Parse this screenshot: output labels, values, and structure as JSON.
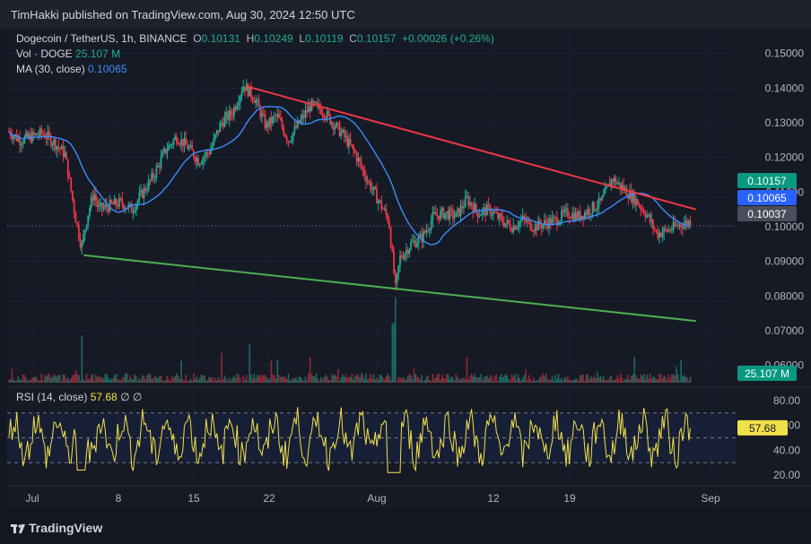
{
  "header": {
    "published": "TimHakki published on TradingView.com, Aug 30, 2024 12:50 UTC"
  },
  "legend": {
    "symbol": "Dogecoin / TetherUS, 1h, BINANCE",
    "o_label": "O",
    "o": "0.10131",
    "h_label": "H",
    "h": "0.10249",
    "l_label": "L",
    "l": "0.10119",
    "c_label": "C",
    "c": "0.10157",
    "change": "+0.00026 (+0.26%)",
    "vol_label": "Vol · DOGE",
    "vol": "25.107 M",
    "ma_label": "MA (30, close)",
    "ma": "0.10065"
  },
  "rsi_legend": {
    "label": "RSI (14, close)",
    "value": "57.68",
    "extra": "∅ ∅"
  },
  "footer": {
    "brand": "TradingView"
  },
  "colors": {
    "up": "#22ab94",
    "down": "#f23645",
    "ma": "#2962ff",
    "rsi": "#f0e14a",
    "resistance": "#f23645",
    "support": "#4caf50",
    "price_tag_last": "#22ab94"
  },
  "chart_data": {
    "type": "candlestick",
    "price_axis_ticks": [
      "0.15000",
      "0.14000",
      "0.13000",
      "0.12000",
      "0.11000",
      "0.10000",
      "0.09000",
      "0.08000",
      "0.07000",
      "0.06000"
    ],
    "price_tags": [
      {
        "value": "0.10157",
        "kind": "last"
      },
      {
        "value": "0.10065",
        "kind": "ma"
      },
      {
        "value": "0.10037",
        "kind": "crosshair"
      }
    ],
    "volume_tag": "25.107 M",
    "rsi_axis_ticks": [
      "80.00",
      "60.00",
      "40.00",
      "20.00"
    ],
    "rsi_tag": "57.68",
    "x_ticks": [
      "Jul",
      "8",
      "15",
      "22",
      "Aug",
      "12",
      "19",
      "Sep"
    ],
    "ylim": [
      0.055,
      0.152
    ],
    "close_path": [
      {
        "t": 0,
        "v": 0.1275
      },
      {
        "t": 1,
        "v": 0.125
      },
      {
        "t": 2,
        "v": 0.126
      },
      {
        "t": 3,
        "v": 0.127
      },
      {
        "t": 4,
        "v": 0.1245
      },
      {
        "t": 5,
        "v": 0.121
      },
      {
        "t": 6,
        "v": 0.102
      },
      {
        "t": 6.5,
        "v": 0.094
      },
      {
        "t": 7,
        "v": 0.103
      },
      {
        "t": 7.6,
        "v": 0.11
      },
      {
        "t": 8,
        "v": 0.105
      },
      {
        "t": 9,
        "v": 0.106
      },
      {
        "t": 10,
        "v": 0.107
      },
      {
        "t": 11,
        "v": 0.105
      },
      {
        "t": 12,
        "v": 0.11
      },
      {
        "t": 13,
        "v": 0.115
      },
      {
        "t": 14,
        "v": 0.122
      },
      {
        "t": 15,
        "v": 0.126
      },
      {
        "t": 16,
        "v": 0.123
      },
      {
        "t": 17,
        "v": 0.119
      },
      {
        "t": 18,
        "v": 0.122
      },
      {
        "t": 19,
        "v": 0.13
      },
      {
        "t": 20,
        "v": 0.133
      },
      {
        "t": 21,
        "v": 0.141
      },
      {
        "t": 22,
        "v": 0.137
      },
      {
        "t": 23,
        "v": 0.129
      },
      {
        "t": 24,
        "v": 0.132
      },
      {
        "t": 25,
        "v": 0.125
      },
      {
        "t": 26,
        "v": 0.13
      },
      {
        "t": 27,
        "v": 0.135
      },
      {
        "t": 28,
        "v": 0.134
      },
      {
        "t": 29,
        "v": 0.13
      },
      {
        "t": 30,
        "v": 0.126
      },
      {
        "t": 31,
        "v": 0.121
      },
      {
        "t": 32,
        "v": 0.114
      },
      {
        "t": 33,
        "v": 0.108
      },
      {
        "t": 34,
        "v": 0.102
      },
      {
        "t": 34.6,
        "v": 0.082
      },
      {
        "t": 35,
        "v": 0.091
      },
      {
        "t": 36,
        "v": 0.095
      },
      {
        "t": 37,
        "v": 0.097
      },
      {
        "t": 38,
        "v": 0.103
      },
      {
        "t": 39,
        "v": 0.104
      },
      {
        "t": 40,
        "v": 0.103
      },
      {
        "t": 41,
        "v": 0.108
      },
      {
        "t": 42,
        "v": 0.104
      },
      {
        "t": 43,
        "v": 0.105
      },
      {
        "t": 44,
        "v": 0.102
      },
      {
        "t": 45,
        "v": 0.1
      },
      {
        "t": 46,
        "v": 0.102
      },
      {
        "t": 47,
        "v": 0.1
      },
      {
        "t": 48,
        "v": 0.101
      },
      {
        "t": 49,
        "v": 0.102
      },
      {
        "t": 50,
        "v": 0.104
      },
      {
        "t": 51,
        "v": 0.103
      },
      {
        "t": 52,
        "v": 0.105
      },
      {
        "t": 53,
        "v": 0.107
      },
      {
        "t": 54,
        "v": 0.114
      },
      {
        "t": 55,
        "v": 0.111
      },
      {
        "t": 56,
        "v": 0.108
      },
      {
        "t": 57,
        "v": 0.104
      },
      {
        "t": 58,
        "v": 0.098
      },
      {
        "t": 59,
        "v": 0.099
      },
      {
        "t": 60,
        "v": 0.1005
      },
      {
        "t": 61,
        "v": 0.1016
      }
    ],
    "volume_spikes": [
      {
        "t": 6.5,
        "v": 0.55
      },
      {
        "t": 19,
        "v": 0.35
      },
      {
        "t": 21.5,
        "v": 0.45
      },
      {
        "t": 27,
        "v": 0.3
      },
      {
        "t": 34.4,
        "v": 0.7
      },
      {
        "t": 34.6,
        "v": 1.0
      },
      {
        "t": 41,
        "v": 0.3
      },
      {
        "t": 56,
        "v": 0.3
      }
    ],
    "resistance_line": {
      "from": {
        "t": 21.3,
        "v": 0.1405
      },
      "to": {
        "t": 61.5,
        "v": 0.105
      }
    },
    "support_line": {
      "from": {
        "t": 6.7,
        "v": 0.0918
      },
      "to": {
        "t": 61.5,
        "v": 0.0728
      }
    }
  }
}
